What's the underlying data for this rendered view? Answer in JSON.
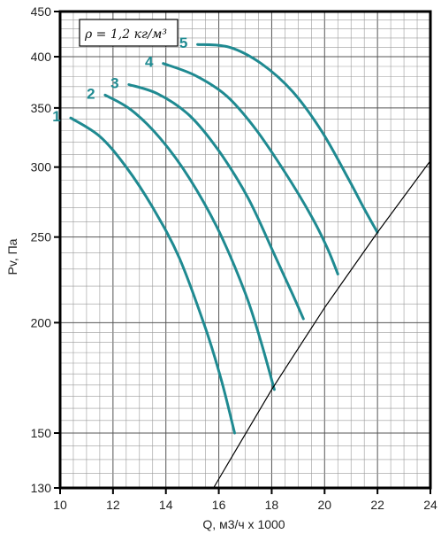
{
  "chart_data": {
    "type": "line",
    "title": "",
    "xlabel": "Q, м3/ч x 1000",
    "ylabel": "Pv, Па",
    "xlim": [
      10,
      24
    ],
    "ylim": [
      130,
      450
    ],
    "yscale": "log",
    "grid": true,
    "x_ticks": [
      10,
      12,
      14,
      16,
      18,
      20,
      22,
      24
    ],
    "y_ticks": [
      130,
      150,
      200,
      250,
      300,
      350,
      400,
      450
    ],
    "annotation": "ρ = 1,2 кг/м³",
    "curve_color": "#1f8a91",
    "series": [
      {
        "name": "1",
        "points": [
          [
            10.4,
            341
          ],
          [
            11.5,
            325
          ],
          [
            12.5,
            300
          ],
          [
            13.5,
            270
          ],
          [
            14.5,
            237
          ],
          [
            15.5,
            197
          ],
          [
            16.1,
            172
          ],
          [
            16.6,
            150
          ]
        ]
      },
      {
        "name": "2",
        "points": [
          [
            11.7,
            362
          ],
          [
            12.7,
            348
          ],
          [
            13.8,
            323
          ],
          [
            14.9,
            291
          ],
          [
            16.0,
            254
          ],
          [
            17.0,
            216
          ],
          [
            17.6,
            190
          ],
          [
            18.1,
            168
          ]
        ]
      },
      {
        "name": "3",
        "points": [
          [
            12.6,
            372
          ],
          [
            13.7,
            363
          ],
          [
            14.9,
            343
          ],
          [
            16.0,
            313
          ],
          [
            17.1,
            277
          ],
          [
            18.1,
            239
          ],
          [
            18.8,
            215
          ],
          [
            19.2,
            202
          ]
        ]
      },
      {
        "name": "4",
        "points": [
          [
            13.9,
            393
          ],
          [
            15.1,
            381
          ],
          [
            16.3,
            361
          ],
          [
            17.4,
            331
          ],
          [
            18.5,
            296
          ],
          [
            19.5,
            264
          ],
          [
            20.1,
            243
          ],
          [
            20.5,
            227
          ]
        ]
      },
      {
        "name": "5",
        "points": [
          [
            15.2,
            413
          ],
          [
            16.4,
            410
          ],
          [
            17.6,
            393
          ],
          [
            18.8,
            365
          ],
          [
            19.9,
            329
          ],
          [
            20.9,
            291
          ],
          [
            21.5,
            269
          ],
          [
            22.0,
            253
          ]
        ]
      },
      {
        "name": "",
        "style": "thin-black",
        "points": [
          [
            15.8,
            130
          ],
          [
            18.0,
            168
          ],
          [
            20.0,
            208
          ],
          [
            22.0,
            253
          ],
          [
            24.0,
            305
          ]
        ]
      }
    ]
  }
}
